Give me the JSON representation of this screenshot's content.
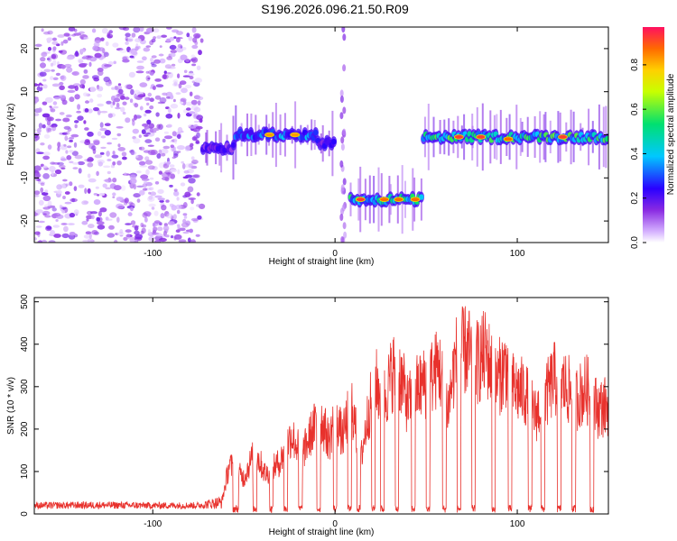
{
  "title": "S196.2026.096.21.50.R09",
  "chart_data": [
    {
      "type": "heatmap",
      "xlabel": "Height of straight line (km)",
      "ylabel": "Frequency (Hz)",
      "xlim": [
        -165,
        150
      ],
      "ylim": [
        -25,
        25
      ],
      "xticks": [
        -100,
        0,
        100
      ],
      "yticks": [
        -20,
        -10,
        0,
        10,
        20
      ],
      "colorbar": {
        "label": "Normalized spectral amplitude",
        "range": [
          0,
          0.97
        ],
        "ticks": [
          0.0,
          0.2,
          0.4,
          0.6,
          0.8
        ],
        "colormap": "rainbow (magenta-blue-cyan-green-yellow-red)"
      },
      "regions": [
        {
          "name": "noise",
          "x": [
            -165,
            -73
          ],
          "freq": "scattered -25 to 25",
          "amplitude": 0.1
        },
        {
          "x": [
            -73,
            -55
          ],
          "freq": -3,
          "amplitude": 0.35
        },
        {
          "x": [
            -55,
            -10
          ],
          "freq": 0,
          "amplitude": 0.6
        },
        {
          "x": [
            -10,
            0
          ],
          "freq": -2,
          "amplitude": 0.4
        },
        {
          "x": [
            8,
            48
          ],
          "freq": -15,
          "amplitude": 0.85
        },
        {
          "x": [
            48,
            150
          ],
          "freq": -0.5,
          "amplitude": 0.9
        }
      ],
      "hotspots": [
        {
          "x": -36,
          "freq": 0,
          "amplitude": 0.85
        },
        {
          "x": -22,
          "freq": 0,
          "amplitude": 0.85
        },
        {
          "x": 14,
          "freq": -15,
          "amplitude": 0.95
        },
        {
          "x": 27,
          "freq": -15,
          "amplitude": 0.9
        },
        {
          "x": 35,
          "freq": -15,
          "amplitude": 0.9
        },
        {
          "x": 44,
          "freq": -15,
          "amplitude": 0.9
        },
        {
          "x": 68,
          "freq": -0.5,
          "amplitude": 0.95
        },
        {
          "x": 80,
          "freq": -0.5,
          "amplitude": 0.95
        },
        {
          "x": 95,
          "freq": -1,
          "amplitude": 0.9
        },
        {
          "x": 125,
          "freq": -0.5,
          "amplitude": 0.95
        }
      ]
    },
    {
      "type": "line",
      "xlabel": "Height of straight line (km)",
      "ylabel": "SNR (10 * v/v)",
      "xlim": [
        -165,
        150
      ],
      "ylim": [
        0,
        510
      ],
      "xticks": [
        -100,
        0,
        100
      ],
      "yticks": [
        0,
        100,
        200,
        300,
        400,
        500
      ],
      "color": "#e8312c",
      "envelope": [
        [
          -165,
          20
        ],
        [
          -130,
          22
        ],
        [
          -100,
          20
        ],
        [
          -75,
          20
        ],
        [
          -62,
          40
        ],
        [
          -58,
          150
        ],
        [
          -50,
          110
        ],
        [
          -44,
          190
        ],
        [
          -38,
          120
        ],
        [
          -30,
          160
        ],
        [
          -24,
          240
        ],
        [
          -18,
          180
        ],
        [
          -12,
          260
        ],
        [
          -8,
          290
        ],
        [
          -3,
          220
        ],
        [
          0,
          320
        ],
        [
          4,
          230
        ],
        [
          9,
          340
        ],
        [
          14,
          160
        ],
        [
          18,
          300
        ],
        [
          22,
          400
        ],
        [
          27,
          350
        ],
        [
          32,
          440
        ],
        [
          36,
          420
        ],
        [
          40,
          330
        ],
        [
          45,
          380
        ],
        [
          52,
          410
        ],
        [
          57,
          450
        ],
        [
          62,
          320
        ],
        [
          66,
          470
        ],
        [
          72,
          500
        ],
        [
          78,
          460
        ],
        [
          83,
          490
        ],
        [
          88,
          400
        ],
        [
          94,
          450
        ],
        [
          98,
          380
        ],
        [
          104,
          370
        ],
        [
          110,
          300
        ],
        [
          116,
          360
        ],
        [
          120,
          410
        ],
        [
          126,
          390
        ],
        [
          132,
          350
        ],
        [
          138,
          380
        ],
        [
          144,
          320
        ],
        [
          150,
          330
        ]
      ],
      "gaps": [
        [
          -56,
          -53
        ],
        [
          -45,
          -43
        ],
        [
          -36,
          -34
        ],
        [
          -28,
          -26
        ],
        [
          -20,
          -18
        ],
        [
          -10,
          -8
        ],
        [
          -1,
          1
        ],
        [
          7,
          9
        ],
        [
          12,
          14
        ],
        [
          20,
          22
        ],
        [
          25,
          27
        ],
        [
          33,
          35
        ],
        [
          42,
          44
        ],
        [
          50,
          52
        ],
        [
          59,
          61
        ],
        [
          67,
          69
        ],
        [
          75,
          77
        ],
        [
          86,
          88
        ],
        [
          95,
          97
        ],
        [
          106,
          108
        ],
        [
          113,
          115
        ],
        [
          122,
          124
        ],
        [
          130,
          132
        ],
        [
          140,
          142
        ]
      ]
    }
  ]
}
